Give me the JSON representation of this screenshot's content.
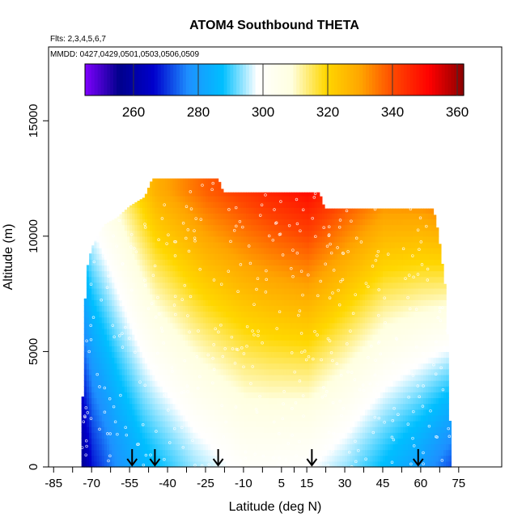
{
  "chart_data": {
    "type": "heatmap",
    "title": "ATOM4 Southbound THETA",
    "annotations": {
      "flights": "Flts: 2,3,4,5,6,7",
      "dates": "MMDD: 0427,0429,0501,0503,0506,0509"
    },
    "xlabel": "Latitude (deg N)",
    "ylabel": "Altitude (m)",
    "xlim": [
      -87,
      92
    ],
    "ylim": [
      0,
      18200
    ],
    "xticks": [
      -85,
      -70,
      -55,
      -40,
      -25,
      -10,
      5,
      15,
      30,
      45,
      60,
      75
    ],
    "yticks": [
      0,
      5000,
      10000,
      15000
    ],
    "colorbar": {
      "range": [
        245,
        362
      ],
      "ticks": [
        260,
        280,
        300,
        320,
        340,
        360
      ],
      "palette": [
        "#7f00ff",
        "#00008b",
        "#0000cd",
        "#1e90ff",
        "#00bfff",
        "#ffffff",
        "#ffffe0",
        "#ffd700",
        "#ffa500",
        "#ff4500",
        "#ff0000",
        "#8b0000"
      ]
    },
    "profile_latitudes": [
      -54,
      -45,
      -20,
      17,
      59
    ],
    "data_extent": [
      {
        "lat": -74,
        "alt_min": 0,
        "alt_max": 0
      },
      {
        "lat": -73,
        "alt_min": 0,
        "alt_max": 6100
      },
      {
        "lat": -72,
        "alt_min": 0,
        "alt_max": 8500
      },
      {
        "lat": -70,
        "alt_min": 0,
        "alt_max": 9500
      },
      {
        "lat": -65,
        "alt_min": 0,
        "alt_max": 10500
      },
      {
        "lat": -60,
        "alt_min": 0,
        "alt_max": 10800
      },
      {
        "lat": -55,
        "alt_min": 0,
        "alt_max": 11300
      },
      {
        "lat": -49,
        "alt_min": 0,
        "alt_max": 11700
      },
      {
        "lat": -46,
        "alt_min": 0,
        "alt_max": 12500
      },
      {
        "lat": -20,
        "alt_min": 0,
        "alt_max": 12500
      },
      {
        "lat": -18,
        "alt_min": 0,
        "alt_max": 11900
      },
      {
        "lat": 20,
        "alt_min": 0,
        "alt_max": 11900
      },
      {
        "lat": 22,
        "alt_min": 0,
        "alt_max": 11200
      },
      {
        "lat": 65,
        "alt_min": 0,
        "alt_max": 11200
      },
      {
        "lat": 67,
        "alt_min": 0,
        "alt_max": 10100
      },
      {
        "lat": 70,
        "alt_min": 0,
        "alt_max": 7500
      },
      {
        "lat": 71,
        "alt_min": 0,
        "alt_max": 4000
      },
      {
        "lat": 72,
        "alt_min": 0,
        "alt_max": 0
      }
    ],
    "theta_field": {
      "surface_theta_by_lat": [
        {
          "lat": -74,
          "theta": 258
        },
        {
          "lat": -70,
          "theta": 268
        },
        {
          "lat": -60,
          "theta": 278
        },
        {
          "lat": -50,
          "theta": 285
        },
        {
          "lat": -30,
          "theta": 294
        },
        {
          "lat": -10,
          "theta": 300
        },
        {
          "lat": 0,
          "theta": 300
        },
        {
          "lat": 15,
          "theta": 299
        },
        {
          "lat": 30,
          "theta": 294
        },
        {
          "lat": 45,
          "theta": 287
        },
        {
          "lat": 60,
          "theta": 280
        },
        {
          "lat": 72,
          "theta": 272
        }
      ],
      "upper_theta_by_lat": [
        {
          "lat": -74,
          "theta": 300
        },
        {
          "lat": -60,
          "theta": 312
        },
        {
          "lat": -45,
          "theta": 328
        },
        {
          "lat": -25,
          "theta": 338
        },
        {
          "lat": 0,
          "theta": 346
        },
        {
          "lat": 15,
          "theta": 350
        },
        {
          "lat": 30,
          "theta": 342
        },
        {
          "lat": 45,
          "theta": 335
        },
        {
          "lat": 60,
          "theta": 336
        },
        {
          "lat": 72,
          "theta": 340
        }
      ],
      "upper_altitude_m": 12000
    }
  }
}
